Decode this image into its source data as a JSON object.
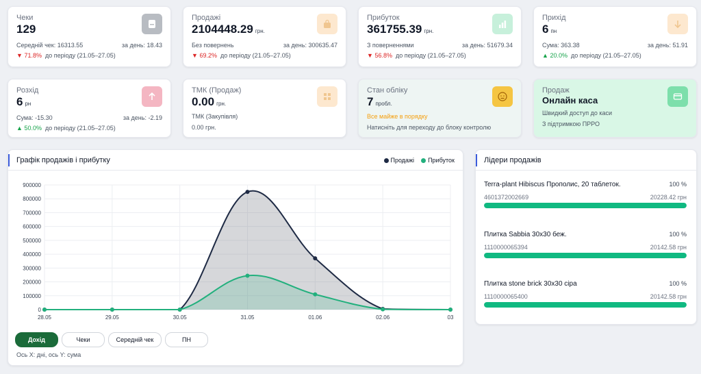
{
  "kpis": [
    {
      "title": "Чеки",
      "value": "129",
      "unit": "",
      "left": "Середній чек: 16313.55",
      "right": "за день: 18.43",
      "delta_arrow": "▼",
      "delta_pct": "71.8%",
      "delta_text": "до періоду (21.05–27.05)",
      "icon": "receipt-icon"
    },
    {
      "title": "Продажі",
      "value": "2104448.29",
      "unit": "грн.",
      "left": "Без повернень",
      "right": "за день: 300635.47",
      "delta_arrow": "▼",
      "delta_pct": "69.2%",
      "delta_text": "до періоду (21.05–27.05)",
      "icon": "shopping-bag-icon"
    },
    {
      "title": "Прибуток",
      "value": "361755.39",
      "unit": "грн.",
      "left": "З поверненнями",
      "right": "за день: 51679.34",
      "delta_arrow": "▼",
      "delta_pct": "56.8%",
      "delta_text": "до періоду (21.05–27.05)",
      "icon": "bar-chart-icon"
    },
    {
      "title": "Прихід",
      "value": "6",
      "unit": "пн",
      "left": "Сума: 363.38",
      "right": "за день: 51.91",
      "delta_arrow": "▲",
      "delta_pct": "20.0%",
      "delta_text": "до періоду (21.05–27.05)",
      "icon": "arrow-down-icon"
    },
    {
      "title": "Розхід",
      "value": "6",
      "unit": "рн",
      "left": "Сума: -15.30",
      "right": "за день: -2.19",
      "delta_arrow": "▲",
      "delta_pct": "50.0%",
      "delta_text": "до періоду (21.05–27.05)",
      "icon": "arrow-up-icon"
    }
  ],
  "tmk": {
    "title": "ТМК (Продаж)",
    "value": "0.00",
    "unit": "грн.",
    "line1": "ТМК (Закупівля)",
    "line2": "0.00 грн.",
    "icon": "grid-icon"
  },
  "accounting": {
    "title": "Стан обліку",
    "value": "7",
    "unit": "пробл.",
    "status": "Все майже в порядку",
    "hint": "Натисніть для переходу до блоку контролю",
    "icon": "face-icon"
  },
  "pos": {
    "title": "Продаж",
    "value": "Онлайн каса",
    "line1": "Швидкий доступ до каси",
    "line2": "З підтримкою ПРРО",
    "icon": "card-icon"
  },
  "chart_panel": {
    "title": "Графік продажів і прибутку",
    "legend_sales": "Продажі",
    "legend_profit": "Прибуток",
    "buttons": [
      "Дохід",
      "Чеки",
      "Середній чек",
      "ПН"
    ],
    "footnote": "Ось X: дні, ось Y: сума"
  },
  "chart_data": {
    "type": "area",
    "x": [
      "28.05",
      "29.05",
      "30.05",
      "31.05",
      "01.06",
      "02.06",
      "03"
    ],
    "series": [
      {
        "name": "Продажі",
        "values": [
          0,
          0,
          0,
          850000,
          370000,
          5000,
          0
        ],
        "color": "#1e2a44"
      },
      {
        "name": "Прибуток",
        "values": [
          0,
          0,
          0,
          245000,
          110000,
          2000,
          0
        ],
        "color": "#22b07d"
      }
    ],
    "yticks": [
      0,
      100000,
      200000,
      300000,
      400000,
      500000,
      600000,
      700000,
      800000,
      900000
    ],
    "ylim": [
      0,
      900000
    ]
  },
  "leaders": {
    "title": "Лідери продажів",
    "items": [
      {
        "name": "Terra-plant Hibiscus Прополис, 20 таблеток.",
        "pct": "100 %",
        "code": "4601372002669",
        "amount": "20228.42 грн",
        "fill": 100
      },
      {
        "name": "Плитка Sabbia 30x30 беж.",
        "pct": "100 %",
        "code": "1110000065394",
        "amount": "20142.58 грн",
        "fill": 100
      },
      {
        "name": "Плитка stone brick 30x30 сіра",
        "pct": "100 %",
        "code": "1110000065400",
        "amount": "20142.58 грн",
        "fill": 100
      }
    ]
  }
}
